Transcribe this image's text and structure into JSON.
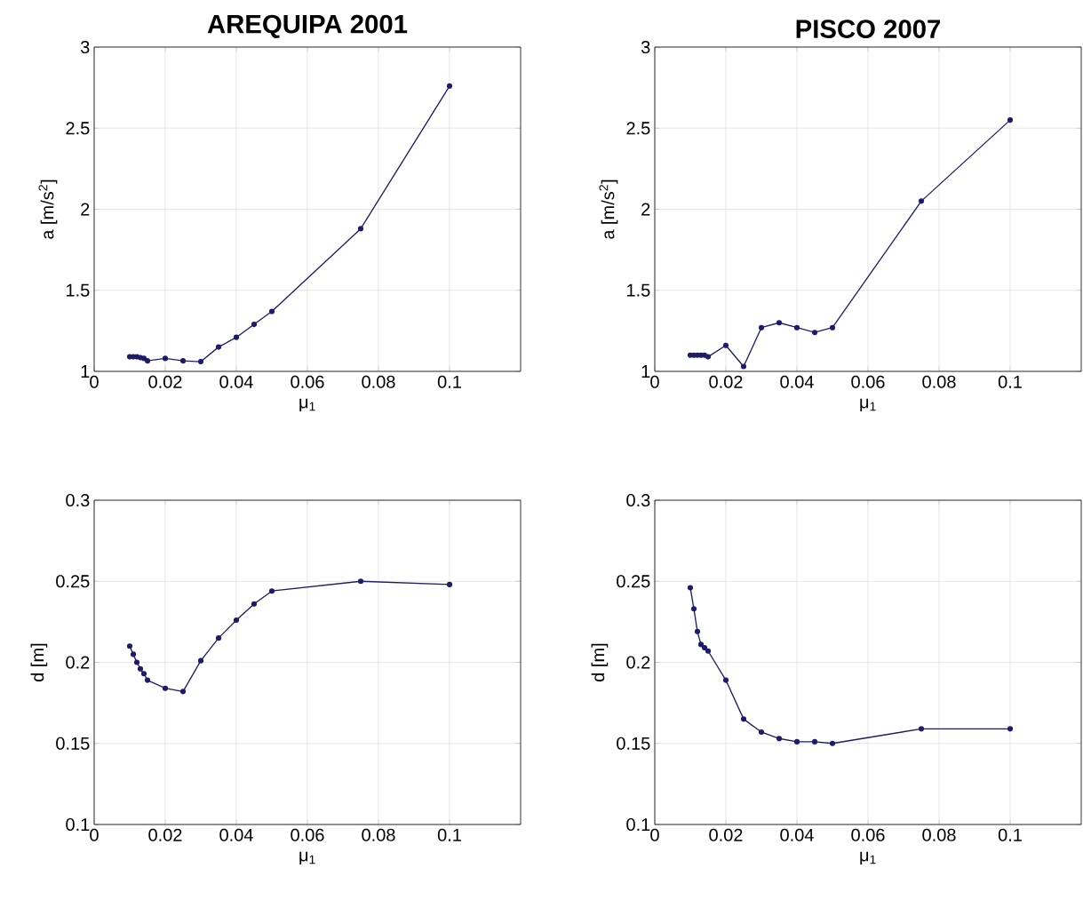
{
  "chart_data": [
    {
      "type": "line",
      "title": "AREQUIPA 2001",
      "xlabel": "μ$_{1}$",
      "ylabel": "a [m/s$^{2}$]",
      "xlim": [
        0,
        0.12
      ],
      "xticks": [
        0,
        0.02,
        0.04,
        0.06,
        0.08,
        0.1
      ],
      "ylim": [
        1,
        3
      ],
      "yticks": [
        1,
        1.5,
        2,
        2.5,
        3
      ],
      "grid": true,
      "marker": "circle",
      "x": [
        0.01,
        0.011,
        0.012,
        0.013,
        0.014,
        0.015,
        0.02,
        0.025,
        0.03,
        0.035,
        0.04,
        0.045,
        0.05,
        0.075,
        0.1
      ],
      "series": [
        {
          "color": "#1c1c6a",
          "values": [
            1.09,
            1.09,
            1.09,
            1.085,
            1.08,
            1.065,
            1.08,
            1.065,
            1.06,
            1.15,
            1.21,
            1.29,
            1.37,
            1.88,
            2.76
          ]
        }
      ]
    },
    {
      "type": "line",
      "title": "PISCO 2007",
      "xlabel": "μ$_{1}$",
      "ylabel": "a [m/s$^{2}$]",
      "xlim": [
        0,
        0.12
      ],
      "xticks": [
        0,
        0.02,
        0.04,
        0.06,
        0.08,
        0.1
      ],
      "ylim": [
        1,
        3
      ],
      "yticks": [
        1,
        1.5,
        2,
        2.5,
        3
      ],
      "grid": true,
      "marker": "circle",
      "x": [
        0.01,
        0.011,
        0.012,
        0.013,
        0.014,
        0.015,
        0.02,
        0.025,
        0.03,
        0.035,
        0.04,
        0.045,
        0.05,
        0.075,
        0.1
      ],
      "series": [
        {
          "color": "#1c1c6a",
          "values": [
            1.1,
            1.1,
            1.1,
            1.1,
            1.1,
            1.09,
            1.16,
            1.03,
            1.27,
            1.3,
            1.27,
            1.24,
            1.27,
            2.05,
            2.55
          ]
        }
      ]
    },
    {
      "type": "line",
      "xlabel": "μ$_{1}$",
      "ylabel": "d [m]",
      "xlim": [
        0,
        0.12
      ],
      "xticks": [
        0,
        0.02,
        0.04,
        0.06,
        0.08,
        0.1
      ],
      "ylim": [
        0.1,
        0.3
      ],
      "yticks": [
        0.1,
        0.15,
        0.2,
        0.25,
        0.3
      ],
      "grid": true,
      "marker": "circle",
      "x": [
        0.01,
        0.011,
        0.012,
        0.013,
        0.014,
        0.015,
        0.02,
        0.025,
        0.03,
        0.035,
        0.04,
        0.045,
        0.05,
        0.075,
        0.1
      ],
      "series": [
        {
          "color": "#1c1c6a",
          "values": [
            0.21,
            0.205,
            0.2,
            0.196,
            0.193,
            0.189,
            0.184,
            0.182,
            0.201,
            0.215,
            0.226,
            0.236,
            0.244,
            0.25,
            0.248
          ]
        }
      ]
    },
    {
      "type": "line",
      "xlabel": "μ$_{1}$",
      "ylabel": "d [m]",
      "xlim": [
        0,
        0.12
      ],
      "xticks": [
        0,
        0.02,
        0.04,
        0.06,
        0.08,
        0.1
      ],
      "ylim": [
        0.1,
        0.3
      ],
      "yticks": [
        0.1,
        0.15,
        0.2,
        0.25,
        0.3
      ],
      "grid": true,
      "marker": "circle",
      "x": [
        0.01,
        0.011,
        0.012,
        0.013,
        0.014,
        0.015,
        0.02,
        0.025,
        0.03,
        0.035,
        0.04,
        0.045,
        0.05,
        0.075,
        0.1
      ],
      "series": [
        {
          "color": "#1c1c6a",
          "values": [
            0.246,
            0.233,
            0.219,
            0.211,
            0.209,
            0.207,
            0.189,
            0.165,
            0.157,
            0.153,
            0.151,
            0.151,
            0.15,
            0.159,
            0.159
          ]
        }
      ]
    }
  ]
}
